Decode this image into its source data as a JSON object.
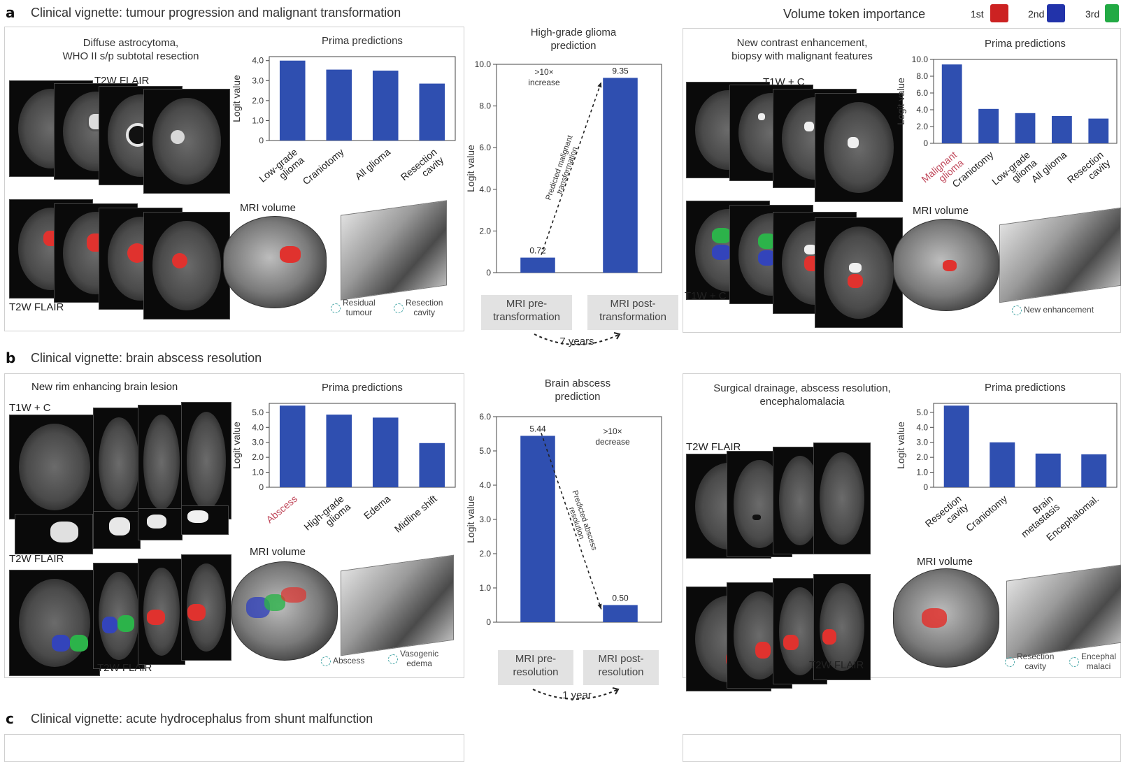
{
  "colors": {
    "bar": "#2f4fb0",
    "highlight_label": "#c0475a",
    "axis": "#333333",
    "mask_red": "#e0322e",
    "mask_blue": "#3344bb",
    "mask_green": "#2cb34a"
  },
  "legend": {
    "title": "Volume token importance",
    "items": [
      {
        "label": "1st",
        "color": "#cc2222"
      },
      {
        "label": "2nd",
        "color": "#2233aa"
      },
      {
        "label": "3rd",
        "color": "#22aa44"
      }
    ]
  },
  "sections": {
    "a": {
      "letter": "a",
      "title": "Clinical vignette: tumour progression and malignant transformation",
      "left": {
        "caption": "Diffuse astrocytoma,\nWHO II s/p subtotal resection",
        "seq_top": "T2W FLAIR",
        "seq_bottom": "T2W FLAIR",
        "volume_label": "MRI volume",
        "ring_labels": [
          "Residual\ntumour",
          "Resection\ncavity"
        ]
      },
      "center": {
        "title": "High-grade glioma\nprediction",
        "change_note": ">10×\nincrease",
        "arrow_note": "Predicted malignant\ntransformation",
        "cat_labels": [
          "MRI pre-\ntransformation",
          "MRI post-\ntransformation"
        ],
        "interval": "7 years"
      },
      "right": {
        "caption": "New contrast enhancement,\nbiopsy with malignant features",
        "seq_top": "T1W + C",
        "seq_bottom": "T1W + C",
        "volume_label": "MRI volume",
        "ring_labels": [
          "New enhancement"
        ]
      }
    },
    "b": {
      "letter": "b",
      "title": "Clinical vignette: brain abscess resolution",
      "left": {
        "caption": "New rim enhancing brain lesion",
        "seq_top": "T1W + C",
        "seq_mid": "T2W FLAIR",
        "seq_bottom": "T2W FLAIR",
        "volume_label": "MRI volume",
        "ring_labels": [
          "Abscess",
          "Vasogenic\nedema"
        ]
      },
      "center": {
        "title": "Brain abscess\nprediction",
        "change_note": ">10×\ndecrease",
        "arrow_note": "Predicted abscess\nresolution",
        "cat_labels": [
          "MRI pre-\nresolution",
          "MRI post-\nresolution"
        ],
        "interval": "1 year"
      },
      "right": {
        "caption": "Surgical drainage, abscess resolution,\nencephalomalacia",
        "seq_top": "T2W FLAIR",
        "seq_bottom": "T2W FLAIR",
        "volume_label": "MRI volume",
        "ring_labels": [
          "Resection\ncavity",
          "Encephal\nmalaci"
        ]
      }
    },
    "c": {
      "letter": "c",
      "title": "Clinical vignette: acute hydrocephalus from shunt malfunction"
    }
  },
  "chart_data": [
    {
      "id": "a_left",
      "type": "bar",
      "title": "Prima predictions",
      "ylabel": "Logit value",
      "categories": [
        "Low-grade\nglioma",
        "Craniotomy",
        "All glioma",
        "Resection\ncavity"
      ],
      "highlight": [],
      "values": [
        4.0,
        3.55,
        3.5,
        2.85
      ],
      "ylim": [
        0,
        4.2
      ],
      "ticks": [
        0,
        1.0,
        2.0,
        3.0,
        4.0
      ]
    },
    {
      "id": "a_center",
      "type": "bar",
      "title": "High-grade glioma\nprediction",
      "ylabel": "Logit value",
      "categories": [
        "MRI pre-\ntransformation",
        "MRI post-\ntransformation"
      ],
      "values": [
        0.72,
        9.35
      ],
      "value_labels": [
        "0.72",
        "9.35"
      ],
      "ylim": [
        0,
        10.0
      ],
      "ticks": [
        0,
        2.0,
        4.0,
        6.0,
        8.0,
        10.0
      ]
    },
    {
      "id": "a_right",
      "type": "bar",
      "title": "Prima predictions",
      "ylabel": "Logit value",
      "categories": [
        "Malignant\nglioma",
        "Craniotomy",
        "Low-grade\nglioma",
        "All glioma",
        "Resection\ncavity"
      ],
      "highlight": [
        0
      ],
      "values": [
        9.4,
        4.1,
        3.6,
        3.25,
        2.95
      ],
      "ylim": [
        0,
        10.0
      ],
      "ticks": [
        0,
        2.0,
        4.0,
        6.0,
        8.0,
        10.0
      ]
    },
    {
      "id": "b_left",
      "type": "bar",
      "title": "Prima predictions",
      "ylabel": "Logit value",
      "categories": [
        "Abscess",
        "High-grade\nglioma",
        "Edema",
        "Midline shift"
      ],
      "highlight": [
        0
      ],
      "values": [
        5.45,
        4.85,
        4.65,
        2.95
      ],
      "ylim": [
        0,
        5.6
      ],
      "ticks": [
        0,
        1.0,
        2.0,
        3.0,
        4.0,
        5.0
      ]
    },
    {
      "id": "b_center",
      "type": "bar",
      "title": "Brain abscess\nprediction",
      "ylabel": "Logit value",
      "categories": [
        "MRI pre-\nresolution",
        "MRI post-\nresolution"
      ],
      "values": [
        5.44,
        0.5
      ],
      "value_labels": [
        "5.44",
        "0.50"
      ],
      "ylim": [
        0,
        6.0
      ],
      "ticks": [
        0,
        1.0,
        2.0,
        3.0,
        4.0,
        5.0,
        6.0
      ]
    },
    {
      "id": "b_right",
      "type": "bar",
      "title": "Prima predictions",
      "ylabel": "Logit value",
      "categories": [
        "Resection\ncavity",
        "Craniotomy",
        "Brain\nmetastasis",
        "Encephalomal."
      ],
      "highlight": [],
      "values": [
        5.45,
        3.0,
        2.25,
        2.2
      ],
      "ylim": [
        0,
        5.6
      ],
      "ticks": [
        0,
        1.0,
        2.0,
        3.0,
        4.0,
        5.0
      ]
    }
  ]
}
